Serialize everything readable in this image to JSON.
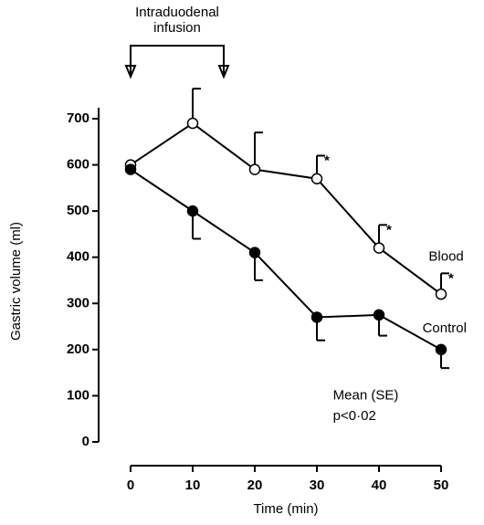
{
  "chart_data": {
    "type": "line",
    "xlabel": "Time (min)",
    "ylabel": "Gastric volume (ml)",
    "x": [
      0,
      10,
      20,
      30,
      40,
      50
    ],
    "series": [
      {
        "name": "Blood",
        "color": "#000000",
        "marker": "open",
        "error_direction": "up",
        "values": [
          600,
          690,
          590,
          570,
          420,
          320
        ],
        "errors": [
          0,
          75,
          80,
          50,
          50,
          45
        ],
        "label_at": [
          48,
          400
        ]
      },
      {
        "name": "Control",
        "color": "#000000",
        "marker": "filled",
        "error_direction": "down",
        "values": [
          590,
          500,
          410,
          270,
          275,
          200
        ],
        "errors": [
          0,
          60,
          60,
          50,
          45,
          40
        ],
        "label_at": [
          47,
          245
        ]
      }
    ],
    "xlim": [
      0,
      50
    ],
    "xticks": [
      0,
      10,
      20,
      30,
      40,
      50
    ],
    "ylim": [
      0,
      700
    ],
    "yticks": [
      0,
      100,
      200,
      300,
      400,
      500,
      600,
      700
    ],
    "grid": false,
    "infusion": {
      "label": [
        "Intraduodenal",
        "infusion"
      ],
      "x": [
        0,
        15
      ]
    },
    "annotations": [
      {
        "text": "*",
        "x": 30,
        "y": 620
      },
      {
        "text": "*",
        "x": 40,
        "y": 470
      },
      {
        "text": "*",
        "x": 50,
        "y": 365
      },
      {
        "text": "Mean (SE)",
        "x": 32.6,
        "y": 100
      },
      {
        "text": "p<0·02",
        "x": 32.6,
        "y": 55
      }
    ]
  }
}
